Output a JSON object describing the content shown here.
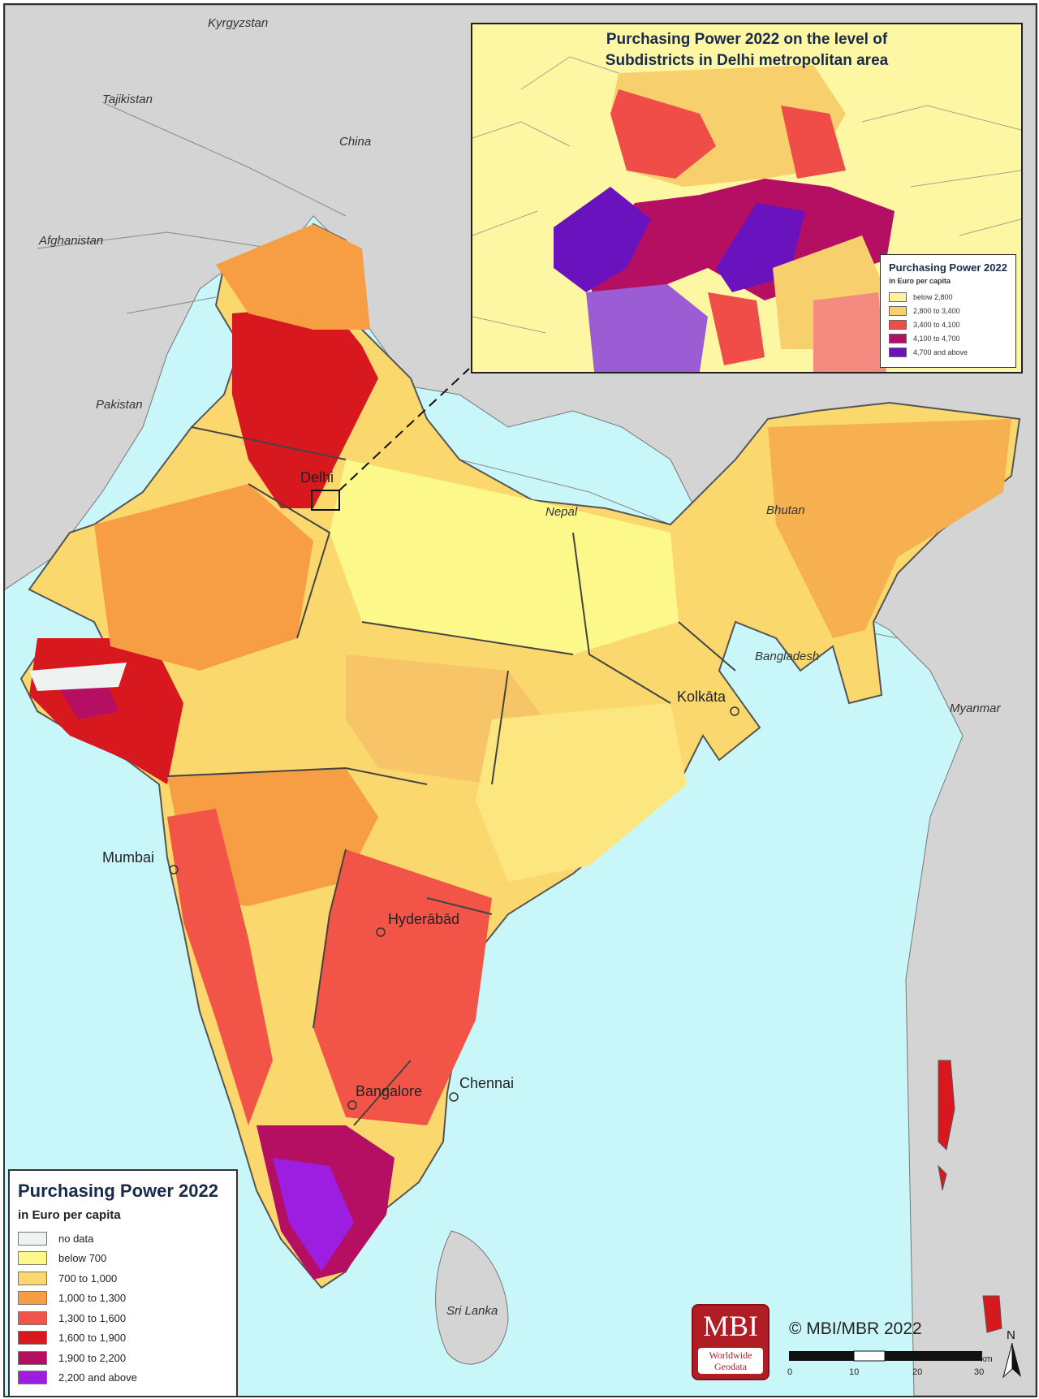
{
  "main_legend": {
    "title": "Purchasing Power 2022",
    "subtitle": "in Euro per capita",
    "classes": [
      {
        "label": "no data",
        "color": "#eef3f1"
      },
      {
        "label": "below 700",
        "color": "#fdf88a"
      },
      {
        "label": "700 to 1,000",
        "color": "#fbd86e"
      },
      {
        "label": "1,000 to 1,300",
        "color": "#f79e45"
      },
      {
        "label": "1,300 to 1,600",
        "color": "#f25548"
      },
      {
        "label": "1,600 to 1,900",
        "color": "#d7181f"
      },
      {
        "label": "1,900 to 2,200",
        "color": "#b40f63"
      },
      {
        "label": "2,200 and above",
        "color": "#9d1de0"
      }
    ]
  },
  "inset": {
    "title_line1": "Purchasing Power 2022 on the level of",
    "title_line2": "Subdistricts in Delhi metropolitan area",
    "legend_title": "Purchasing Power 2022",
    "legend_subtitle": "in Euro per capita",
    "classes": [
      {
        "label": "below 2,800",
        "color": "#fdf39a"
      },
      {
        "label": "2,800 to 3,400",
        "color": "#f7cf6c"
      },
      {
        "label": "3,400 to 4,100",
        "color": "#f04c48"
      },
      {
        "label": "4,100 to 4,700",
        "color": "#b40f63"
      },
      {
        "label": "4,700 and above",
        "color": "#6a12be"
      }
    ]
  },
  "country_labels": [
    "Kyrgyzstan",
    "Tajikistan",
    "China",
    "Afghanistan",
    "Pakistan",
    "Nepal",
    "Bhutan",
    "Bangladesh",
    "Myanmar",
    "Sri Lanka"
  ],
  "city_labels": [
    "Delhi",
    "Kolkāta",
    "Mumbai",
    "Hyderābād",
    "Bangalore",
    "Chennai"
  ],
  "logo": {
    "name": "MBI",
    "line1": "Worldwide",
    "line2": "Geodata"
  },
  "copyright": "© MBI/MBR 2022",
  "scale": {
    "ticks": [
      "0",
      "10",
      "20",
      "30"
    ],
    "unit": "km"
  },
  "north": "N",
  "colors": {
    "sea": "#c9f7f9",
    "land_neighbors": "#d4d4d4",
    "border": "#555555"
  }
}
